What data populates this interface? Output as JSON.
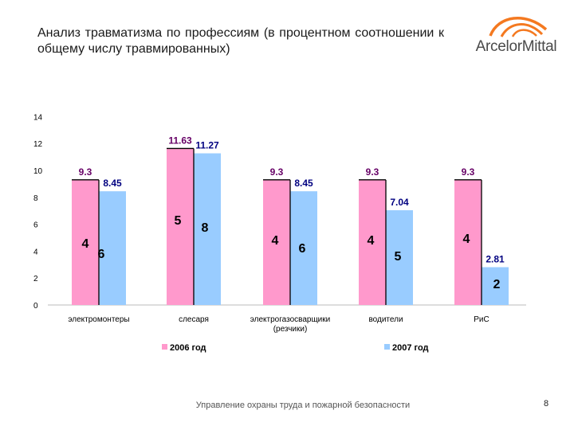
{
  "title": "Анализ травматизма по профессиям (в процентном соотношении к общему числу травмированных)",
  "logo": {
    "text": "ArcelorMittal",
    "icon": "arcelormittal-logo-icon"
  },
  "footer": "Управление охраны труда и пожарной безопасности",
  "page_number": "8",
  "colors": {
    "series_2006": "#ff99cc",
    "series_2007": "#99ccff",
    "label_2006": "#660066",
    "label_2007": "#000080"
  },
  "chart_data": {
    "type": "bar",
    "categories": [
      "электромонтеры",
      "слесаря",
      "электрогазосварщики (резчики)",
      "водители",
      "РиС"
    ],
    "category_lines": [
      [
        "электромонтеры"
      ],
      [
        "слесаря"
      ],
      [
        "электрогазосварщики",
        "(резчики)"
      ],
      [
        "водители"
      ],
      [
        "РиС"
      ]
    ],
    "series": [
      {
        "name": "2006 год",
        "values": [
          9.3,
          11.63,
          9.3,
          9.3,
          9.3
        ],
        "value_labels": [
          "9.3",
          "11.63",
          "9.3",
          "9.3",
          "9.3"
        ],
        "counts": [
          "4",
          "5",
          "4",
          "4",
          "4"
        ]
      },
      {
        "name": "2007 год",
        "values": [
          8.45,
          11.27,
          8.45,
          7.04,
          2.81
        ],
        "value_labels": [
          "8.45",
          "11.27",
          "8.45",
          "7.04",
          "2.81"
        ],
        "counts": [
          "6",
          "8",
          "6",
          "5",
          "2"
        ]
      }
    ],
    "ylim": [
      0,
      14
    ],
    "yticks": [
      "0",
      "2",
      "4",
      "6",
      "8",
      "10",
      "12",
      "14"
    ],
    "grid": false,
    "legend_position": "bottom"
  }
}
